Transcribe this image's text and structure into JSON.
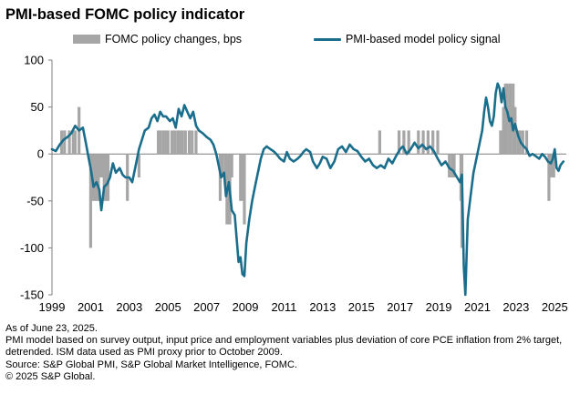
{
  "title": "PMI-based FOMC policy indicator",
  "footnotes": {
    "as_of": "As of June 23, 2025.",
    "method": "PMI model based on survey output, input price and employment variables plus deviation of core PCE inflation from 2% target, detrended.  ISM data used as PMI proxy prior to October 2009.",
    "source": "Source: S&P Global PMI, S&P Global Market Intelligence, FOMC.",
    "copyright": "© 2025 S&P Global."
  },
  "colors": {
    "bars": "#a6a6a6",
    "line": "#1a6e8c",
    "axis": "#7f7f7f"
  },
  "chart_data": {
    "type": "bar+line",
    "title": "PMI-based FOMC policy indicator",
    "xlabel": "",
    "ylabel": "",
    "xlim": [
      1999.0,
      2025.6
    ],
    "ylim": [
      -150,
      100
    ],
    "yticks": [
      -150,
      -100,
      -50,
      0,
      50,
      100
    ],
    "xticks": [
      "1999",
      "2001",
      "2003",
      "2005",
      "2007",
      "2009",
      "2011",
      "2013",
      "2015",
      "2017",
      "2019",
      "2021",
      "2023",
      "2025"
    ],
    "legend": "top",
    "grid": false,
    "series": [
      {
        "name": "FOMC policy changes, bps",
        "type": "bar",
        "points": [
          [
            1999.5,
            25
          ],
          [
            1999.65,
            25
          ],
          [
            1999.9,
            25
          ],
          [
            2000.1,
            25
          ],
          [
            2000.2,
            25
          ],
          [
            2000.4,
            50
          ],
          [
            2001.0,
            -100
          ],
          [
            2001.1,
            -50
          ],
          [
            2001.2,
            -50
          ],
          [
            2001.3,
            -50
          ],
          [
            2001.4,
            -50
          ],
          [
            2001.5,
            -25
          ],
          [
            2001.6,
            -25
          ],
          [
            2001.7,
            -50
          ],
          [
            2001.8,
            -50
          ],
          [
            2001.9,
            -50
          ],
          [
            2002.9,
            -50
          ],
          [
            2003.5,
            -25
          ],
          [
            2004.5,
            25
          ],
          [
            2004.6,
            25
          ],
          [
            2004.75,
            25
          ],
          [
            2004.9,
            25
          ],
          [
            2005.0,
            25
          ],
          [
            2005.2,
            25
          ],
          [
            2005.35,
            25
          ],
          [
            2005.5,
            25
          ],
          [
            2005.6,
            25
          ],
          [
            2005.75,
            25
          ],
          [
            2005.9,
            25
          ],
          [
            2006.1,
            25
          ],
          [
            2006.25,
            25
          ],
          [
            2006.45,
            25
          ],
          [
            2007.7,
            -50
          ],
          [
            2007.8,
            -25
          ],
          [
            2007.95,
            -25
          ],
          [
            2008.05,
            -75
          ],
          [
            2008.1,
            -50
          ],
          [
            2008.2,
            -75
          ],
          [
            2008.3,
            -25
          ],
          [
            2008.75,
            -50
          ],
          [
            2008.85,
            -50
          ],
          [
            2008.95,
            -75
          ],
          [
            2015.95,
            25
          ],
          [
            2016.95,
            25
          ],
          [
            2017.2,
            25
          ],
          [
            2017.45,
            25
          ],
          [
            2017.95,
            25
          ],
          [
            2018.2,
            25
          ],
          [
            2018.45,
            25
          ],
          [
            2018.7,
            25
          ],
          [
            2018.95,
            25
          ],
          [
            2019.55,
            -25
          ],
          [
            2019.7,
            -25
          ],
          [
            2019.8,
            -25
          ],
          [
            2020.15,
            -50
          ],
          [
            2020.2,
            -100
          ],
          [
            2022.2,
            25
          ],
          [
            2022.35,
            50
          ],
          [
            2022.45,
            75
          ],
          [
            2022.55,
            75
          ],
          [
            2022.7,
            75
          ],
          [
            2022.85,
            75
          ],
          [
            2022.95,
            50
          ],
          [
            2023.1,
            25
          ],
          [
            2023.2,
            25
          ],
          [
            2023.35,
            25
          ],
          [
            2023.55,
            25
          ],
          [
            2024.7,
            -50
          ],
          [
            2024.85,
            -25
          ],
          [
            2024.95,
            -25
          ]
        ]
      },
      {
        "name": "PMI-based model policy signal",
        "type": "line",
        "points": [
          [
            1999.0,
            5
          ],
          [
            1999.2,
            3
          ],
          [
            1999.4,
            10
          ],
          [
            1999.6,
            15
          ],
          [
            1999.8,
            18
          ],
          [
            2000.0,
            22
          ],
          [
            2000.2,
            30
          ],
          [
            2000.4,
            25
          ],
          [
            2000.6,
            28
          ],
          [
            2000.75,
            12
          ],
          [
            2000.9,
            -5
          ],
          [
            2001.0,
            -15
          ],
          [
            2001.15,
            -35
          ],
          [
            2001.3,
            -30
          ],
          [
            2001.45,
            -38
          ],
          [
            2001.55,
            -60
          ],
          [
            2001.7,
            -35
          ],
          [
            2001.85,
            -32
          ],
          [
            2002.0,
            -25
          ],
          [
            2002.15,
            -10
          ],
          [
            2002.3,
            -20
          ],
          [
            2002.5,
            -15
          ],
          [
            2002.65,
            -22
          ],
          [
            2002.8,
            -25
          ],
          [
            2003.0,
            -25
          ],
          [
            2003.15,
            -30
          ],
          [
            2003.3,
            -15
          ],
          [
            2003.5,
            5
          ],
          [
            2003.65,
            15
          ],
          [
            2003.8,
            25
          ],
          [
            2004.0,
            28
          ],
          [
            2004.15,
            38
          ],
          [
            2004.3,
            42
          ],
          [
            2004.45,
            35
          ],
          [
            2004.6,
            45
          ],
          [
            2004.75,
            40
          ],
          [
            2004.9,
            40
          ],
          [
            2005.1,
            35
          ],
          [
            2005.25,
            38
          ],
          [
            2005.4,
            28
          ],
          [
            2005.55,
            48
          ],
          [
            2005.7,
            40
          ],
          [
            2005.85,
            52
          ],
          [
            2006.0,
            45
          ],
          [
            2006.15,
            38
          ],
          [
            2006.3,
            45
          ],
          [
            2006.45,
            30
          ],
          [
            2006.6,
            25
          ],
          [
            2006.8,
            22
          ],
          [
            2007.0,
            18
          ],
          [
            2007.2,
            15
          ],
          [
            2007.35,
            10
          ],
          [
            2007.5,
            0
          ],
          [
            2007.6,
            -10
          ],
          [
            2007.75,
            -25
          ],
          [
            2007.9,
            -20
          ],
          [
            2008.0,
            -45
          ],
          [
            2008.15,
            -30
          ],
          [
            2008.3,
            -60
          ],
          [
            2008.45,
            -65
          ],
          [
            2008.55,
            -90
          ],
          [
            2008.65,
            -115
          ],
          [
            2008.75,
            -110
          ],
          [
            2008.85,
            -128
          ],
          [
            2008.95,
            -130
          ],
          [
            2009.05,
            -95
          ],
          [
            2009.2,
            -70
          ],
          [
            2009.35,
            -50
          ],
          [
            2009.5,
            -35
          ],
          [
            2009.65,
            -20
          ],
          [
            2009.8,
            -5
          ],
          [
            2009.95,
            5
          ],
          [
            2010.1,
            8
          ],
          [
            2010.3,
            5
          ],
          [
            2010.45,
            3
          ],
          [
            2010.6,
            0
          ],
          [
            2010.8,
            -5
          ],
          [
            2011.0,
            -8
          ],
          [
            2011.15,
            2
          ],
          [
            2011.3,
            -5
          ],
          [
            2011.5,
            -8
          ],
          [
            2011.7,
            -5
          ],
          [
            2011.85,
            -2
          ],
          [
            2012.0,
            2
          ],
          [
            2012.15,
            5
          ],
          [
            2012.35,
            2
          ],
          [
            2012.5,
            -8
          ],
          [
            2012.7,
            -15
          ],
          [
            2012.85,
            -10
          ],
          [
            2013.0,
            -3
          ],
          [
            2013.2,
            -5
          ],
          [
            2013.4,
            -15
          ],
          [
            2013.6,
            -8
          ],
          [
            2013.8,
            5
          ],
          [
            2014.0,
            8
          ],
          [
            2014.2,
            2
          ],
          [
            2014.4,
            10
          ],
          [
            2014.6,
            5
          ],
          [
            2014.8,
            3
          ],
          [
            2015.0,
            -3
          ],
          [
            2015.2,
            -8
          ],
          [
            2015.4,
            -5
          ],
          [
            2015.6,
            -12
          ],
          [
            2015.8,
            -15
          ],
          [
            2016.0,
            -12
          ],
          [
            2016.2,
            -15
          ],
          [
            2016.4,
            -5
          ],
          [
            2016.6,
            -10
          ],
          [
            2016.8,
            -2
          ],
          [
            2017.0,
            5
          ],
          [
            2017.15,
            8
          ],
          [
            2017.35,
            0
          ],
          [
            2017.55,
            5
          ],
          [
            2017.75,
            12
          ],
          [
            2017.95,
            6
          ],
          [
            2018.15,
            10
          ],
          [
            2018.35,
            5
          ],
          [
            2018.55,
            8
          ],
          [
            2018.75,
            3
          ],
          [
            2018.95,
            -5
          ],
          [
            2019.15,
            -12
          ],
          [
            2019.35,
            -8
          ],
          [
            2019.55,
            -15
          ],
          [
            2019.75,
            -18
          ],
          [
            2019.95,
            -25
          ],
          [
            2020.1,
            -30
          ],
          [
            2020.2,
            -22
          ],
          [
            2020.3,
            -120
          ],
          [
            2020.38,
            -150
          ],
          [
            2020.5,
            -70
          ],
          [
            2020.65,
            -45
          ],
          [
            2020.8,
            -20
          ],
          [
            2020.95,
            -5
          ],
          [
            2021.1,
            10
          ],
          [
            2021.25,
            25
          ],
          [
            2021.35,
            45
          ],
          [
            2021.45,
            60
          ],
          [
            2021.55,
            50
          ],
          [
            2021.65,
            35
          ],
          [
            2021.75,
            30
          ],
          [
            2021.85,
            40
          ],
          [
            2021.95,
            65
          ],
          [
            2022.05,
            75
          ],
          [
            2022.15,
            70
          ],
          [
            2022.25,
            55
          ],
          [
            2022.35,
            70
          ],
          [
            2022.45,
            50
          ],
          [
            2022.55,
            45
          ],
          [
            2022.65,
            35
          ],
          [
            2022.75,
            38
          ],
          [
            2022.85,
            25
          ],
          [
            2022.95,
            32
          ],
          [
            2023.1,
            20
          ],
          [
            2023.25,
            12
          ],
          [
            2023.4,
            8
          ],
          [
            2023.55,
            5
          ],
          [
            2023.7,
            -2
          ],
          [
            2023.85,
            0
          ],
          [
            2024.0,
            -2
          ],
          [
            2024.2,
            -5
          ],
          [
            2024.35,
            0
          ],
          [
            2024.5,
            -3
          ],
          [
            2024.65,
            -8
          ],
          [
            2024.8,
            -10
          ],
          [
            2024.9,
            -5
          ],
          [
            2025.0,
            5
          ],
          [
            2025.1,
            -15
          ],
          [
            2025.2,
            -18
          ],
          [
            2025.3,
            -12
          ],
          [
            2025.45,
            -8
          ]
        ]
      }
    ]
  }
}
